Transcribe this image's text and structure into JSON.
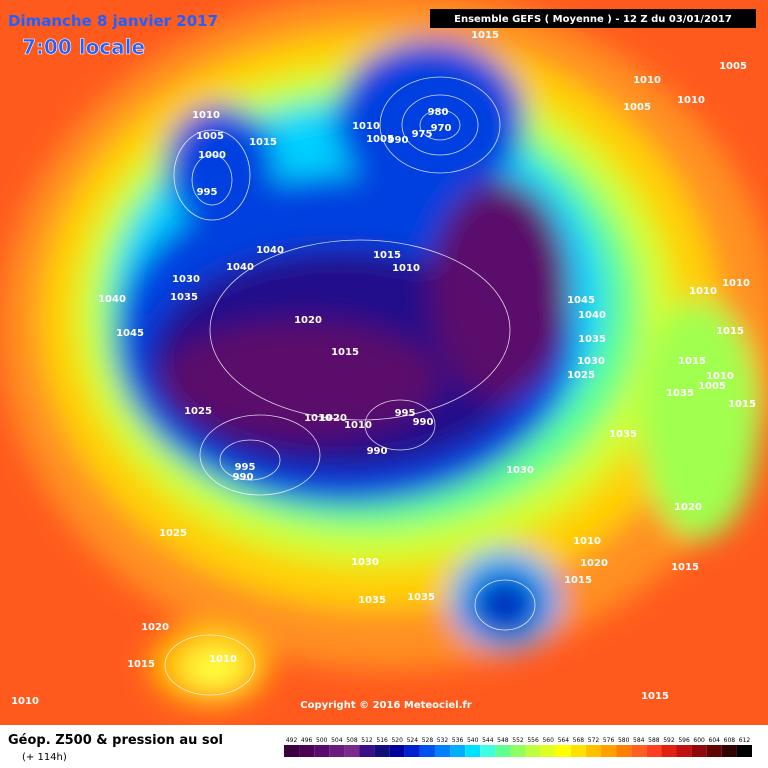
{
  "map": {
    "title": "Dimanche 8 janvier 2017",
    "local_time": "7:00 locale",
    "run": "Ensemble GEFS  ( Moyenne )  -  12 Z du 03/01/2017",
    "copyright": "Copyright © 2016 Meteociel.fr",
    "caption": "Géop. Z500 & pression au sol",
    "lead_time": "(+ 114h)",
    "isobar_labels": [
      1015,
      1010,
      1005,
      1005,
      1010,
      980,
      970,
      1010,
      1005,
      990,
      975,
      1010,
      1005,
      1015,
      1000,
      995,
      1040,
      1040,
      1015,
      1010,
      1030,
      1035,
      1040,
      1045,
      1020,
      1015,
      1045,
      1040,
      1035,
      1030,
      1025,
      1010,
      1010,
      1015,
      1015,
      1035,
      1010,
      1005,
      1015,
      1025,
      1010,
      1020,
      1010,
      995,
      990,
      990,
      995,
      990,
      1030,
      1035,
      1020,
      1025,
      1010,
      1020,
      1015,
      1015,
      1030,
      1035,
      1035,
      1020,
      1015,
      1010,
      1015,
      1010
    ],
    "colorbar": {
      "levels": [
        492,
        496,
        500,
        504,
        508,
        512,
        516,
        520,
        524,
        528,
        532,
        536,
        540,
        544,
        548,
        552,
        556,
        560,
        564,
        568,
        572,
        576,
        580,
        584,
        588,
        592,
        596,
        600,
        604,
        608,
        612
      ],
      "colors": [
        "#3c0040",
        "#4b0050",
        "#5a0a6a",
        "#6a1a80",
        "#7a2a8a",
        "#3a108a",
        "#10107a",
        "#0000a0",
        "#0020d0",
        "#0050f0",
        "#0080ff",
        "#00b0ff",
        "#00e0ff",
        "#40ffe0",
        "#60ff90",
        "#90ff60",
        "#c0ff40",
        "#e0ff20",
        "#ffff00",
        "#ffe000",
        "#ffc000",
        "#ffa000",
        "#ff8000",
        "#ff6020",
        "#ff4020",
        "#e02010",
        "#c01010",
        "#900808",
        "#600404",
        "#300202",
        "#000000"
      ]
    }
  }
}
